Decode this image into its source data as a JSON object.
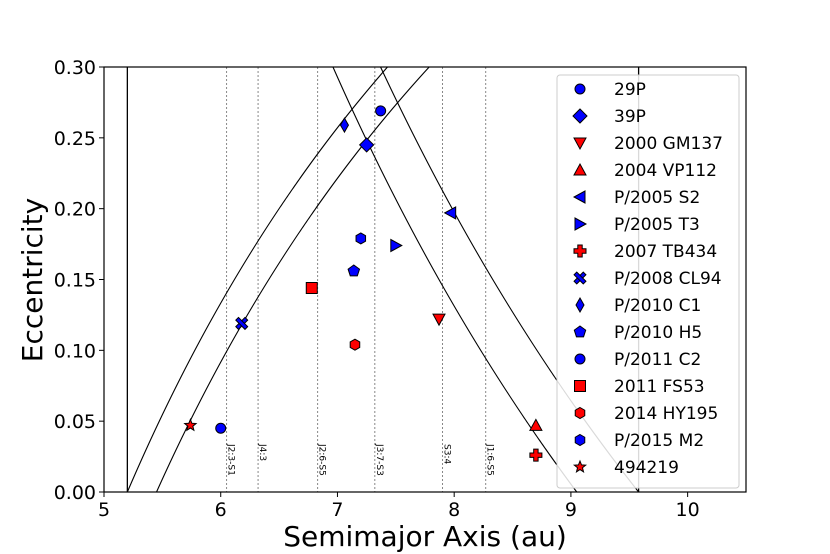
{
  "chart_data": {
    "type": "scatter",
    "xlabel": "Semimajor Axis (au)",
    "ylabel": "Eccentricity",
    "xlim": [
      5,
      10.5
    ],
    "ylim": [
      0,
      0.3
    ],
    "xticks": [
      5,
      6,
      7,
      8,
      9,
      10
    ],
    "yticks": [
      0.0,
      0.05,
      0.1,
      0.15,
      0.2,
      0.25,
      0.3
    ],
    "grid": false,
    "legend_position": "right",
    "reference_lines": [
      {
        "x": 5.2,
        "style": "solid"
      },
      {
        "x": 9.58,
        "style": "solid"
      }
    ],
    "resonances": [
      {
        "label": "J2:3-S1",
        "x": 6.05
      },
      {
        "label": "J4:3",
        "x": 6.32
      },
      {
        "label": "J2:6-S5",
        "x": 6.83
      },
      {
        "label": "J3:7-S3",
        "x": 7.32
      },
      {
        "label": "S3:4",
        "x": 7.9
      },
      {
        "label": "J1:6-S5",
        "x": 8.27
      }
    ],
    "curves": [
      {
        "kind": "perihelion",
        "q": 5.2
      },
      {
        "kind": "perihelion",
        "q": 5.45
      },
      {
        "kind": "aphelion",
        "Q": 9.05
      },
      {
        "kind": "aphelion",
        "Q": 9.58
      }
    ],
    "series": [
      {
        "name": "29P",
        "marker": "circle",
        "color": "#0000ff",
        "x": 6.0,
        "y": 0.045
      },
      {
        "name": "39P",
        "marker": "diamond",
        "color": "#0000ff",
        "x": 7.25,
        "y": 0.245
      },
      {
        "name": "2000 GM137",
        "marker": "triangle-down",
        "color": "#ff0000",
        "x": 7.87,
        "y": 0.122
      },
      {
        "name": "2004 VP112",
        "marker": "triangle-up",
        "color": "#ff0000",
        "x": 8.7,
        "y": 0.047
      },
      {
        "name": "P/2005 S2",
        "marker": "triangle-left",
        "color": "#0000ff",
        "x": 7.97,
        "y": 0.197
      },
      {
        "name": "P/2005 T3",
        "marker": "triangle-right",
        "color": "#0000ff",
        "x": 7.5,
        "y": 0.174
      },
      {
        "name": "2007 TB434",
        "marker": "plus",
        "color": "#ff0000",
        "x": 8.7,
        "y": 0.026
      },
      {
        "name": "P/2008 CL94",
        "marker": "x",
        "color": "#0000ff",
        "x": 6.18,
        "y": 0.119
      },
      {
        "name": "P/2010 C1",
        "marker": "thin-diamond",
        "color": "#0000ff",
        "x": 7.06,
        "y": 0.259
      },
      {
        "name": "P/2010 H5",
        "marker": "pentagon",
        "color": "#0000ff",
        "x": 7.14,
        "y": 0.156
      },
      {
        "name": "P/2011 C2",
        "marker": "circle",
        "color": "#0000ff",
        "x": 7.37,
        "y": 0.269
      },
      {
        "name": "2011 FS53",
        "marker": "square",
        "color": "#ff0000",
        "x": 6.78,
        "y": 0.144
      },
      {
        "name": "2014 HY195",
        "marker": "hexagon",
        "color": "#ff0000",
        "x": 7.15,
        "y": 0.104
      },
      {
        "name": "P/2015 M2",
        "marker": "hexagon",
        "color": "#0000ff",
        "x": 7.2,
        "y": 0.179
      },
      {
        "name": "494219",
        "marker": "star",
        "color": "#ff0000",
        "x": 5.74,
        "y": 0.047
      }
    ]
  }
}
